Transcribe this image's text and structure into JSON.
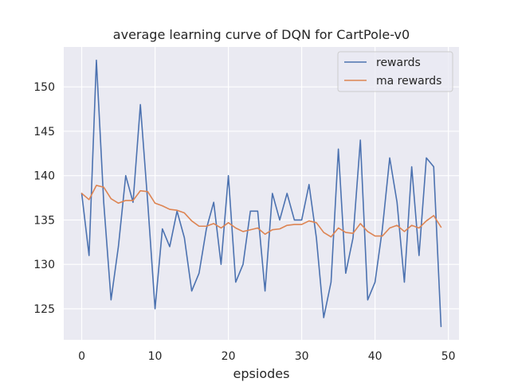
{
  "chart_data": {
    "type": "line",
    "title": "average learning curve of DQN for CartPole-v0",
    "xlabel": "epsiodes",
    "ylabel": "",
    "xlim": [
      -2.45,
      51.45
    ],
    "ylim": [
      121.5,
      154.5
    ],
    "xticks": [
      0,
      10,
      20,
      30,
      40,
      50
    ],
    "yticks": [
      125,
      130,
      135,
      140,
      145,
      150
    ],
    "grid": true,
    "legend_position": "top-right",
    "series": [
      {
        "name": "rewards",
        "color": "#4c72b0",
        "x": [
          0,
          1,
          2,
          3,
          4,
          5,
          6,
          7,
          8,
          9,
          10,
          11,
          12,
          13,
          14,
          15,
          16,
          17,
          18,
          19,
          20,
          21,
          22,
          23,
          24,
          25,
          26,
          27,
          28,
          29,
          30,
          31,
          32,
          33,
          34,
          35,
          36,
          37,
          38,
          39,
          40,
          41,
          42,
          43,
          44,
          45,
          46,
          47,
          48,
          49
        ],
        "values": [
          138,
          131,
          153,
          137,
          126,
          132,
          140,
          137,
          148,
          137,
          125,
          134,
          132,
          136,
          133,
          127,
          129,
          134,
          137,
          130,
          140,
          128,
          130,
          136,
          136,
          127,
          138,
          135,
          138,
          135,
          135,
          139,
          133,
          124,
          128,
          143,
          129,
          133,
          144,
          126,
          128,
          134,
          142,
          137,
          128,
          141,
          131,
          142,
          141,
          123
        ]
      },
      {
        "name": "ma rewards",
        "color": "#dd8452",
        "x": [
          0,
          1,
          2,
          3,
          4,
          5,
          6,
          7,
          8,
          9,
          10,
          11,
          12,
          13,
          14,
          15,
          16,
          17,
          18,
          19,
          20,
          21,
          22,
          23,
          24,
          25,
          26,
          27,
          28,
          29,
          30,
          31,
          32,
          33,
          34,
          35,
          36,
          37,
          38,
          39,
          40,
          41,
          42,
          43,
          44,
          45,
          46,
          47,
          48,
          49
        ],
        "values": [
          138,
          137.3,
          138.9,
          138.7,
          137.4,
          136.9,
          137.2,
          137.2,
          138.3,
          138.2,
          136.9,
          136.6,
          136.2,
          136.1,
          135.8,
          134.9,
          134.3,
          134.3,
          134.6,
          134.1,
          134.7,
          134.1,
          133.7,
          133.9,
          134.1,
          133.4,
          133.9,
          134,
          134.4,
          134.5,
          134.5,
          134.9,
          134.7,
          133.6,
          133.1,
          134.1,
          133.6,
          133.5,
          134.6,
          133.7,
          133.2,
          133.2,
          134.1,
          134.4,
          133.7,
          134.4,
          134.1,
          134.9,
          135.5,
          134.2
        ]
      }
    ]
  }
}
